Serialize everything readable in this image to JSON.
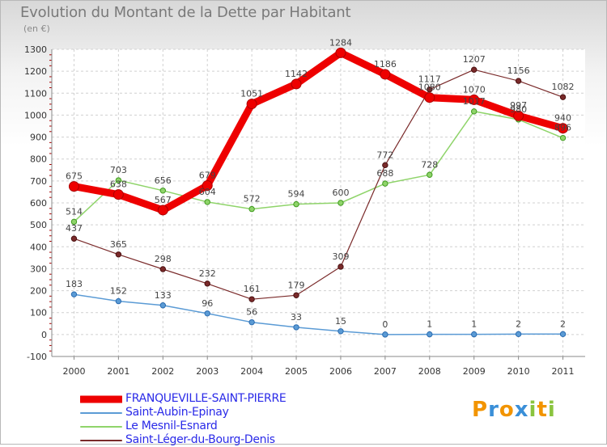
{
  "title": "Evolution du Montant de la Dette par Habitant",
  "subtitle": "(en €)",
  "logo": {
    "letters": [
      "P",
      "r",
      "o",
      "x",
      "i",
      "t",
      "i"
    ],
    "colors": [
      "#f29400",
      "#3a8fd8",
      "#f29400",
      "#3a8fd8",
      "#8ac43f",
      "#f29400",
      "#8ac43f"
    ]
  },
  "chart_data": {
    "type": "line",
    "x": [
      "2000",
      "2001",
      "2002",
      "2003",
      "2004",
      "2005",
      "2006",
      "2007",
      "2008",
      "2009",
      "2010",
      "2011"
    ],
    "ylim": [
      -100,
      1300
    ],
    "yticks": [
      "-100",
      "0",
      "100",
      "200",
      "300",
      "400",
      "500",
      "600",
      "700",
      "800",
      "900",
      "1000",
      "1100",
      "1200",
      "1300"
    ],
    "grid": true,
    "legend_position": "bottom-left",
    "series": [
      {
        "name": "FRANQUEVILLE-SAINT-PIERRE",
        "color": "#ee0000",
        "values": [
          675,
          638,
          567,
          679,
          1051,
          1142,
          1284,
          1186,
          1080,
          1070,
          997,
          940
        ],
        "labels": [
          "675",
          "638",
          "567",
          "679",
          "1051",
          "1142",
          "1284",
          "1186",
          "1080",
          "1070",
          "997",
          "940"
        ]
      },
      {
        "name": "Saint-Aubin-Epinay",
        "color": "#5b9bd5",
        "values": [
          183,
          152,
          133,
          96,
          56,
          33,
          15,
          0,
          1,
          1,
          2,
          2
        ],
        "labels": [
          "183",
          "152",
          "133",
          "96",
          "56",
          "33",
          "15",
          "0",
          "1",
          "1",
          "2",
          "2"
        ]
      },
      {
        "name": "Le Mesnil-Esnard",
        "color": "#8fd46a",
        "values": [
          514,
          703,
          656,
          604,
          572,
          594,
          600,
          688,
          728,
          1017,
          980,
          896
        ],
        "labels": [
          "514",
          "703",
          "656",
          "604",
          "572",
          "594",
          "600",
          "688",
          "728",
          "1017",
          "980",
          "896"
        ]
      },
      {
        "name": "Saint-Léger-du-Bourg-Denis",
        "color": "#7a2a2a",
        "values": [
          437,
          365,
          298,
          232,
          161,
          179,
          309,
          772,
          1117,
          1207,
          1156,
          1082
        ],
        "labels": [
          "437",
          "365",
          "298",
          "232",
          "161",
          "179",
          "309",
          "772",
          "1117",
          "1207",
          "1156",
          "1082"
        ]
      }
    ]
  }
}
